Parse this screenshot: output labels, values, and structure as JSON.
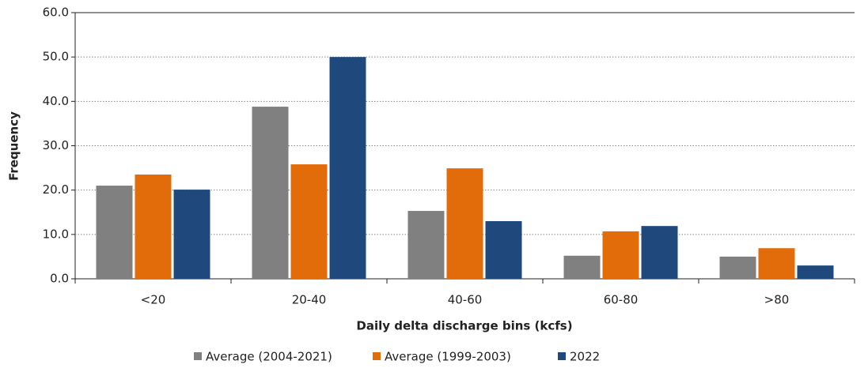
{
  "chart_data": {
    "type": "bar",
    "x_label": "Daily delta discharge bins (kcfs)",
    "y_label": "Frequency",
    "categories": [
      "<20",
      "20-40",
      "40-60",
      "60-80",
      ">80"
    ],
    "series": [
      {
        "name": "Average (2004-2021)",
        "color": "#808080",
        "values": [
          21.0,
          38.8,
          15.3,
          5.2,
          5.0
        ]
      },
      {
        "name": "Average (1999-2003)",
        "color": "#e36c0a",
        "values": [
          23.5,
          25.8,
          24.9,
          10.7,
          6.9
        ]
      },
      {
        "name": "2022",
        "color": "#1f497d",
        "values": [
          20.1,
          50.0,
          13.0,
          11.9,
          3.0
        ]
      }
    ],
    "ylim": [
      0,
      60
    ],
    "yticks": [
      {
        "value": 0,
        "label": "0.0"
      },
      {
        "value": 10,
        "label": "10.0"
      },
      {
        "value": 20,
        "label": "20.0"
      },
      {
        "value": 30,
        "label": "30.0"
      },
      {
        "value": 40,
        "label": "40.0"
      },
      {
        "value": 50,
        "label": "50.0"
      },
      {
        "value": 60,
        "label": "60.0"
      }
    ],
    "grid": true,
    "legend": "bottom"
  }
}
